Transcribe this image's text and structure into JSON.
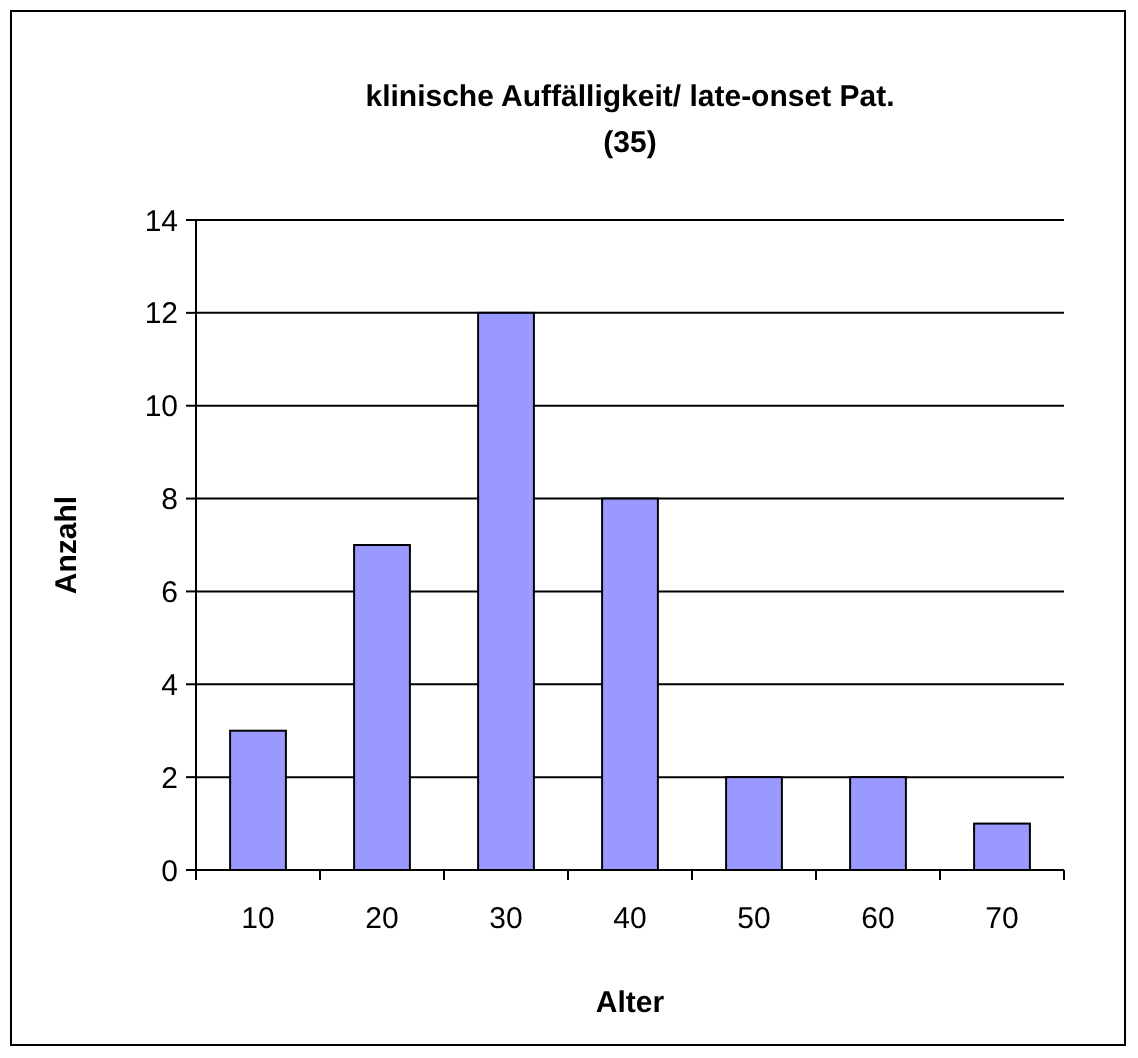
{
  "chart_data": {
    "type": "bar",
    "title": "klinische Auffälligkeit/ late-onset Pat.\n(35)",
    "xlabel": "Alter",
    "ylabel": "Anzahl",
    "categories": [
      "10",
      "20",
      "30",
      "40",
      "50",
      "60",
      "70"
    ],
    "values": [
      3,
      7,
      12,
      8,
      2,
      2,
      1
    ],
    "color": "#9999ff",
    "ylim": [
      0,
      14
    ],
    "yticks": [
      0,
      2,
      4,
      6,
      8,
      10,
      12,
      14
    ],
    "grid": "y"
  }
}
